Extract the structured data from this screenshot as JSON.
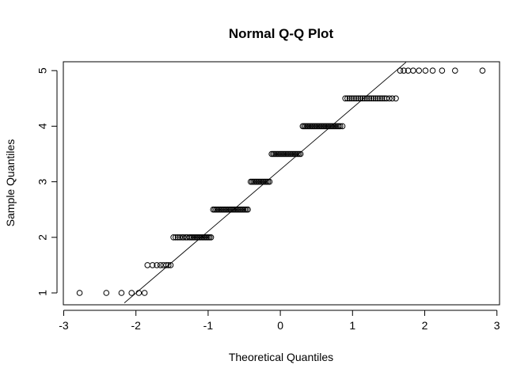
{
  "chart_data": {
    "type": "scatter",
    "title": "Normal Q-Q Plot",
    "xlabel": "Theoretical Quantiles",
    "ylabel": "Sample Quantiles",
    "xlim": [
      -3,
      3
    ],
    "ylim": [
      1,
      5
    ],
    "xticks": [
      -3,
      -2,
      -1,
      0,
      1,
      2,
      3
    ],
    "yticks": [
      1,
      2,
      3,
      4,
      5
    ],
    "grid": false,
    "reference_line": {
      "points": [
        [
          -2.16,
          0.82
        ],
        [
          1.74,
          5.15
        ]
      ]
    },
    "groups": [
      {
        "y": 1.0,
        "x": [
          -2.78,
          -2.41,
          -2.2,
          -2.06,
          -1.96,
          -1.88
        ]
      },
      {
        "y": 1.5,
        "x": [
          -1.84,
          -1.77,
          -1.71,
          -1.66,
          -1.62,
          -1.58,
          -1.55,
          -1.52
        ]
      },
      {
        "y": 2.0,
        "x": [
          -1.48,
          -1.45,
          -1.42,
          -1.39,
          -1.36,
          -1.34,
          -1.31,
          -1.29,
          -1.26,
          -1.24,
          -1.22,
          -1.2,
          -1.18,
          -1.16,
          -1.14,
          -1.12,
          -1.1,
          -1.08,
          -1.06,
          -1.04,
          -1.02,
          -1.0,
          -0.98,
          -0.96
        ]
      },
      {
        "y": 2.5,
        "x": [
          -0.93,
          -0.91,
          -0.89,
          -0.87,
          -0.85,
          -0.83,
          -0.81,
          -0.79,
          -0.77,
          -0.75,
          -0.73,
          -0.71,
          -0.69,
          -0.67,
          -0.65,
          -0.63,
          -0.61,
          -0.59,
          -0.57,
          -0.55,
          -0.53,
          -0.51,
          -0.49,
          -0.47,
          -0.45
        ]
      },
      {
        "y": 3.0,
        "x": [
          -0.41,
          -0.39,
          -0.37,
          -0.35,
          -0.33,
          -0.31,
          -0.29,
          -0.27,
          -0.25,
          -0.23,
          -0.21,
          -0.19,
          -0.17,
          -0.15
        ]
      },
      {
        "y": 3.5,
        "x": [
          -0.12,
          -0.1,
          -0.08,
          -0.06,
          -0.04,
          -0.02,
          0.0,
          0.02,
          0.04,
          0.06,
          0.08,
          0.1,
          0.12,
          0.14,
          0.16,
          0.18,
          0.2,
          0.22,
          0.24,
          0.26,
          0.28
        ]
      },
      {
        "y": 4.0,
        "x": [
          0.31,
          0.33,
          0.35,
          0.37,
          0.39,
          0.41,
          0.43,
          0.45,
          0.47,
          0.49,
          0.51,
          0.53,
          0.55,
          0.57,
          0.59,
          0.61,
          0.63,
          0.65,
          0.67,
          0.69,
          0.71,
          0.73,
          0.75,
          0.77,
          0.79,
          0.81,
          0.83,
          0.86
        ]
      },
      {
        "y": 4.5,
        "x": [
          0.9,
          0.93,
          0.96,
          0.99,
          1.02,
          1.05,
          1.08,
          1.11,
          1.14,
          1.17,
          1.2,
          1.23,
          1.26,
          1.29,
          1.32,
          1.35,
          1.38,
          1.41,
          1.44,
          1.47,
          1.51,
          1.55,
          1.6
        ]
      },
      {
        "y": 5.0,
        "x": [
          1.66,
          1.71,
          1.77,
          1.84,
          1.92,
          2.01,
          2.11,
          2.24,
          2.42,
          2.8
        ]
      }
    ]
  }
}
